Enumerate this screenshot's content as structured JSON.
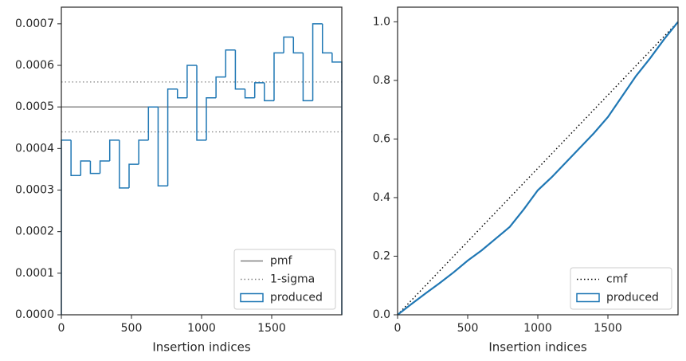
{
  "chart_data": [
    {
      "type": "histogram",
      "xlabel": "Insertion indices",
      "name": "produced",
      "color": "#1f77b4",
      "bins": [
        0,
        69,
        138,
        207,
        276,
        345,
        414,
        483,
        552,
        621,
        690,
        759,
        828,
        897,
        966,
        1034,
        1103,
        1172,
        1241,
        1310,
        1379,
        1448,
        1517,
        1586,
        1655,
        1724,
        1793,
        1862,
        1931,
        2000
      ],
      "values": [
        0.00042,
        0.000335,
        0.00037,
        0.00034,
        0.00037,
        0.00042,
        0.000305,
        0.000362,
        0.00042,
        0.0005,
        0.00031,
        0.000543,
        0.000522,
        0.0006,
        0.00042,
        0.000522,
        0.000572,
        0.000637,
        0.000543,
        0.000522,
        0.000558,
        0.000515,
        0.00063,
        0.000668,
        0.00063,
        0.000515,
        0.0007,
        0.00063,
        0.000608
      ],
      "reference_lines": [
        {
          "name": "pmf",
          "values": [
            0.0005
          ],
          "color": "#808080",
          "style": "solid"
        },
        {
          "name": "1-sigma",
          "values": [
            0.00056,
            0.00044
          ],
          "color": "#808080",
          "style": "dotted"
        }
      ],
      "xlim": [
        0,
        2000
      ],
      "xticks": [
        0,
        500,
        1000,
        1500
      ],
      "ylim": [
        0,
        0.00074
      ],
      "yticks": [
        {
          "value": 0,
          "label": "0.0000"
        },
        {
          "value": 0.0001,
          "label": "0.0001"
        },
        {
          "value": 0.0002,
          "label": "0.0002"
        },
        {
          "value": 0.0003,
          "label": "0.0003"
        },
        {
          "value": 0.0004,
          "label": "0.0004"
        },
        {
          "value": 0.0005,
          "label": "0.0005"
        },
        {
          "value": 0.0006,
          "label": "0.0006"
        },
        {
          "value": 0.0007,
          "label": "0.0007"
        }
      ],
      "legend": "lower right"
    },
    {
      "type": "line",
      "xlabel": "Insertion indices",
      "series": [
        {
          "name": "cmf",
          "color": "#000000",
          "style": "dotted",
          "x": [
            0,
            2000
          ],
          "values": [
            0,
            1
          ]
        },
        {
          "name": "produced",
          "color": "#1f77b4",
          "style": "step",
          "x": [
            0,
            100,
            200,
            300,
            400,
            500,
            600,
            700,
            800,
            900,
            1000,
            1100,
            1200,
            1300,
            1400,
            1500,
            1600,
            1700,
            1800,
            1900,
            2000
          ],
          "values": [
            0,
            0.037,
            0.073,
            0.108,
            0.145,
            0.185,
            0.22,
            0.26,
            0.3,
            0.36,
            0.425,
            0.47,
            0.52,
            0.57,
            0.62,
            0.675,
            0.745,
            0.815,
            0.875,
            0.94,
            1.0
          ]
        }
      ],
      "xlim": [
        0,
        2000
      ],
      "xticks": [
        0,
        500,
        1000,
        1500
      ],
      "ylim": [
        0,
        1.05
      ],
      "yticks": [
        {
          "value": 0,
          "label": "0.0"
        },
        0.2,
        0.4,
        0.6,
        0.8,
        {
          "value": 1,
          "label": "1.0"
        }
      ],
      "legend": "lower right"
    }
  ]
}
